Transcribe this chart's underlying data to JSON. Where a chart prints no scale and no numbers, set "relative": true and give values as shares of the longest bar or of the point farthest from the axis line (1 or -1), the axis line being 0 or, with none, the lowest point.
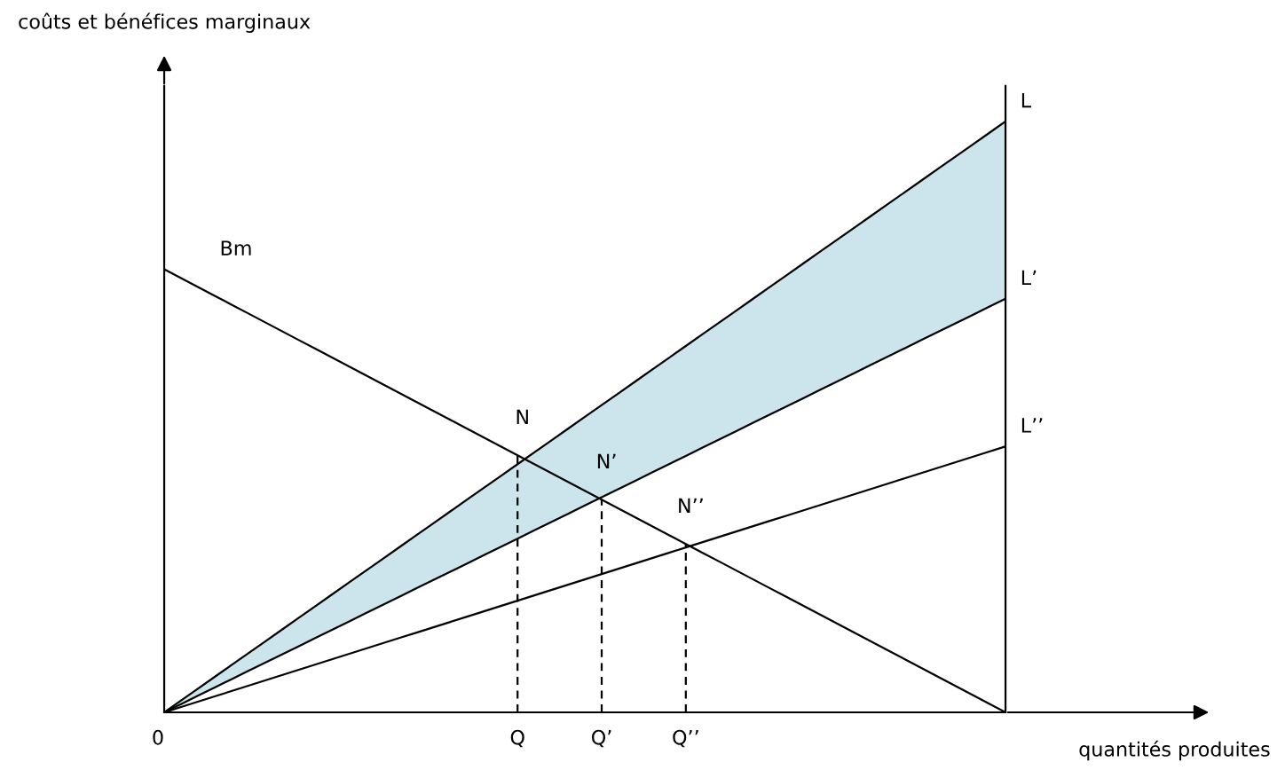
{
  "chart_data": {
    "type": "line",
    "relative": true,
    "xlabel": "quantités produites",
    "ylabel": "coûts et bénéfices marginaux",
    "categories": [
      "0",
      null,
      null,
      null,
      null,
      null,
      null,
      null,
      null,
      null,
      null,
      null,
      null,
      null,
      null,
      null,
      null,
      null,
      null,
      null,
      null,
      "Q",
      null,
      null,
      null,
      null,
      "Q’",
      null,
      null,
      null,
      null,
      "Q’’",
      null,
      null,
      null,
      null,
      null,
      null,
      null,
      null,
      null,
      null,
      null,
      null,
      null,
      null,
      null,
      null,
      null,
      null,
      null
    ],
    "tick_labels": "x",
    "grid": false,
    "legend": false,
    "series": [
      {
        "name": "Bm",
        "color": "#000000",
        "values": [
          0.75,
          0.735,
          0.72,
          0.705,
          0.69,
          0.675,
          0.66,
          0.645,
          0.63,
          0.615,
          0.6,
          0.585,
          0.57,
          0.555,
          0.54,
          0.525,
          0.51,
          0.495,
          0.48,
          0.465,
          0.45,
          0.435,
          0.42,
          0.405,
          0.39,
          0.375,
          0.36,
          0.345,
          0.33,
          0.315,
          0.3,
          0.285,
          0.27,
          0.255,
          0.24,
          0.225,
          0.21,
          0.195,
          0.18,
          0.165,
          0.15,
          0.135,
          0.12,
          0.105,
          0.09,
          0.075,
          0.06,
          0.045,
          0.03,
          0.015,
          0
        ]
      },
      {
        "name": "L",
        "color": "#000000",
        "values": [
          0,
          0.02,
          0.04,
          0.06,
          0.08,
          0.1,
          0.12,
          0.14,
          0.16,
          0.18,
          0.2,
          0.22,
          0.24,
          0.26,
          0.28,
          0.3,
          0.32,
          0.34,
          0.36,
          0.38,
          0.4,
          0.42,
          0.44,
          0.46,
          0.48,
          0.5,
          0.52,
          0.54,
          0.56,
          0.58,
          0.6,
          0.62,
          0.64,
          0.66,
          0.68,
          0.7,
          0.72,
          0.74,
          0.76,
          0.78,
          0.8,
          0.82,
          0.84,
          0.86,
          0.88,
          0.9,
          0.92,
          0.94,
          0.96,
          0.98,
          1
        ]
      },
      {
        "name": "L’",
        "color": "#000000",
        "values": [
          0,
          0.014,
          0.028,
          0.042,
          0.056,
          0.07,
          0.084,
          0.098,
          0.112,
          0.126,
          0.14,
          0.154,
          0.168,
          0.182,
          0.196,
          0.21,
          0.224,
          0.238,
          0.252,
          0.266,
          0.28,
          0.294,
          0.308,
          0.322,
          0.336,
          0.35,
          0.364,
          0.378,
          0.392,
          0.406,
          0.42,
          0.434,
          0.448,
          0.462,
          0.476,
          0.49,
          0.504,
          0.518,
          0.532,
          0.546,
          0.56,
          0.574,
          0.588,
          0.602,
          0.616,
          0.63,
          0.644,
          0.658,
          0.672,
          0.686,
          0.7
        ]
      },
      {
        "name": "L’’",
        "color": "#000000",
        "values": [
          0,
          0.009,
          0.018,
          0.027,
          0.036,
          0.045,
          0.054,
          0.063,
          0.072,
          0.081,
          0.09,
          0.099,
          0.108,
          0.117,
          0.126,
          0.135,
          0.144,
          0.153,
          0.162,
          0.171,
          0.18,
          0.189,
          0.198,
          0.207,
          0.216,
          0.225,
          0.234,
          0.243,
          0.252,
          0.261,
          0.27,
          0.279,
          0.288,
          0.297,
          0.306,
          0.315,
          0.324,
          0.333,
          0.342,
          0.351,
          0.36,
          0.369,
          0.378,
          0.387,
          0.396,
          0.405,
          0.414,
          0.423,
          0.432,
          0.441,
          0.45
        ]
      }
    ],
    "ref_lines": [
      {
        "axis": "x",
        "value": "Q",
        "line_style": "dashed",
        "color": "#000000"
      },
      {
        "axis": "x",
        "value": "Q’",
        "line_style": "dashed",
        "color": "#000000"
      },
      {
        "axis": "x",
        "value": "Q’’",
        "line_style": "dashed",
        "color": "#000000"
      }
    ],
    "annotations": [
      {
        "text": "N",
        "x": "Q",
        "y": 0.435
      },
      {
        "text": "N’",
        "x": "Q’",
        "y": 0.36
      },
      {
        "text": "N’’",
        "x": "Q’’",
        "y": 0.285
      }
    ]
  }
}
